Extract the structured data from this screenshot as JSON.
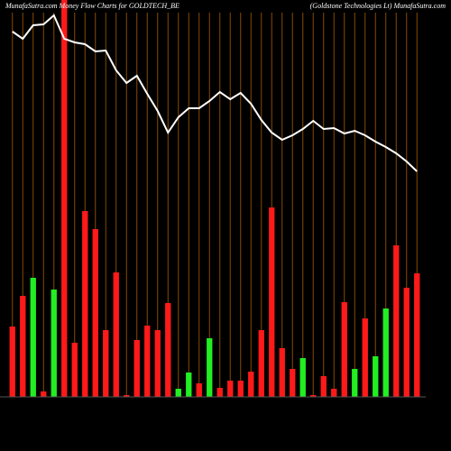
{
  "chart_data": {
    "type": "bar",
    "title": "MunafaSutra.com   Money Flow  Charts for GOLDTECH_BE",
    "subtitle": "(Goldstone   Technologies Lt) MunafaSutra.com",
    "categories": [
      null,
      null,
      null,
      null,
      null,
      null,
      null,
      null,
      null,
      null,
      null,
      null,
      null,
      null,
      null,
      null,
      null,
      null,
      null,
      null,
      null,
      null,
      null,
      null,
      null,
      null,
      null,
      null,
      null,
      null,
      null,
      null,
      null,
      null,
      null,
      null,
      null,
      null,
      null,
      null
    ],
    "values": [
      78,
      112,
      132,
      6,
      119,
      445,
      60,
      206,
      186,
      74,
      138,
      2,
      63,
      79,
      74,
      104,
      9,
      27,
      15,
      65,
      10,
      18,
      18,
      28,
      74,
      210,
      54,
      31,
      43,
      2,
      23,
      9,
      105,
      31,
      87,
      45,
      98,
      168,
      121,
      137
    ],
    "colors": [
      "#ff1a1a",
      "#ff1a1a",
      "#22ee22",
      "#ff1a1a",
      "#22ee22",
      "#ff1a1a",
      "#ff1a1a",
      "#ff1a1a",
      "#ff1a1a",
      "#ff1a1a",
      "#ff1a1a",
      "#ff1a1a",
      "#ff1a1a",
      "#ff1a1a",
      "#ff1a1a",
      "#ff1a1a",
      "#22ee22",
      "#22ee22",
      "#ff1a1a",
      "#22ee22",
      "#ff1a1a",
      "#ff1a1a",
      "#ff1a1a",
      "#ff1a1a",
      "#ff1a1a",
      "#ff1a1a",
      "#ff1a1a",
      "#ff1a1a",
      "#22ee22",
      "#ff1a1a",
      "#ff1a1a",
      "#ff1a1a",
      "#ff1a1a",
      "#22ee22",
      "#ff1a1a",
      "#22ee22",
      "#22ee22",
      "#ff1a1a",
      "#ff1a1a",
      "#ff1a1a"
    ],
    "line": {
      "color": "#ffffff",
      "values": [
        405,
        397,
        412,
        413,
        423,
        397,
        393,
        391,
        383,
        384,
        362,
        348,
        356,
        336,
        317,
        293,
        310,
        320,
        320,
        328,
        338,
        330,
        337,
        325,
        307,
        293,
        285,
        290,
        297,
        306,
        297,
        298,
        292,
        295,
        290,
        283,
        277,
        270,
        261,
        250
      ]
    },
    "ylim": [
      0,
      440
    ]
  }
}
